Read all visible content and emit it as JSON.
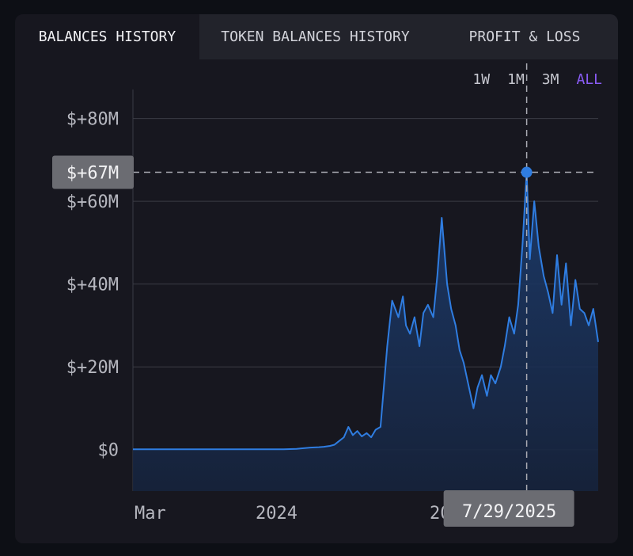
{
  "tabs": {
    "balances_history": "BALANCES HISTORY",
    "token_balances_history": "TOKEN BALANCES HISTORY",
    "profit_loss": "PROFIT & LOSS"
  },
  "ranges": [
    "1W",
    "1M",
    "3M",
    "ALL"
  ],
  "selected_range": "ALL",
  "colors": {
    "line": "#2f7de1",
    "accent_range": "#8a5cf6",
    "tooltip_bg": "#6b6c72"
  },
  "chart_data": {
    "type": "area",
    "ylim": [
      -10000000,
      87000000
    ],
    "y_ticks": [
      {
        "value": 0,
        "label": "$0"
      },
      {
        "value": 20000000,
        "label": "$+20M"
      },
      {
        "value": 40000000,
        "label": "$+40M"
      },
      {
        "value": 60000000,
        "label": "$+60M"
      },
      {
        "value": 80000000,
        "label": "$+80M"
      }
    ],
    "x_ticks": [
      "Mar",
      "2024",
      "2025"
    ],
    "grid": true,
    "crosshair": {
      "date": "7/29/2025",
      "value": 67000000,
      "value_label": "$+67M"
    },
    "series": [
      {
        "x": [
          "2023-03-01",
          "2023-06-01",
          "2023-09-01",
          "2023-12-01",
          "2024-02-01",
          "2024-03-01",
          "2024-04-01",
          "2024-04-20",
          "2024-05-01",
          "2024-05-15",
          "2024-05-25",
          "2024-06-01",
          "2024-06-15",
          "2024-06-25",
          "2024-07-05",
          "2024-07-15",
          "2024-07-25",
          "2024-08-05",
          "2024-08-15",
          "2024-08-25",
          "2024-09-05",
          "2024-09-20",
          "2024-10-01",
          "2024-10-15",
          "2024-10-25",
          "2024-11-01",
          "2024-11-10",
          "2024-11-20",
          "2024-12-01",
          "2024-12-10",
          "2024-12-20",
          "2025-01-01",
          "2025-01-10",
          "2025-01-20",
          "2025-02-01",
          "2025-02-10",
          "2025-02-20",
          "2025-03-01",
          "2025-03-10",
          "2025-03-20",
          "2025-04-01",
          "2025-04-10",
          "2025-04-20",
          "2025-05-01",
          "2025-05-10",
          "2025-05-20",
          "2025-06-01",
          "2025-06-10",
          "2025-06-20",
          "2025-07-01",
          "2025-07-10",
          "2025-07-20",
          "2025-07-29",
          "2025-08-05",
          "2025-08-15",
          "2025-08-25",
          "2025-09-05",
          "2025-09-15",
          "2025-09-25",
          "2025-10-05",
          "2025-10-15",
          "2025-10-25",
          "2025-11-05",
          "2025-11-15",
          "2025-11-25",
          "2025-12-05",
          "2025-12-15",
          "2025-12-25",
          "2026-01-05"
        ],
        "values": [
          100000,
          100000,
          100000,
          100000,
          100000,
          200000,
          500000,
          600000,
          700000,
          900000,
          1200000,
          1800000,
          3000000,
          5500000,
          3500000,
          4500000,
          3200000,
          4000000,
          3000000,
          4800000,
          5500000,
          25000000,
          36000000,
          32000000,
          37000000,
          30000000,
          28000000,
          32000000,
          25000000,
          33000000,
          35000000,
          32000000,
          42000000,
          56000000,
          40000000,
          34000000,
          30000000,
          24000000,
          21000000,
          16000000,
          10000000,
          15000000,
          18000000,
          13000000,
          18000000,
          16000000,
          20000000,
          25000000,
          32000000,
          28000000,
          35000000,
          50000000,
          67000000,
          46000000,
          60000000,
          49000000,
          42000000,
          38000000,
          33000000,
          47000000,
          35000000,
          45000000,
          30000000,
          41000000,
          34000000,
          33000000,
          30000000,
          34000000,
          26000000
        ]
      }
    ]
  }
}
